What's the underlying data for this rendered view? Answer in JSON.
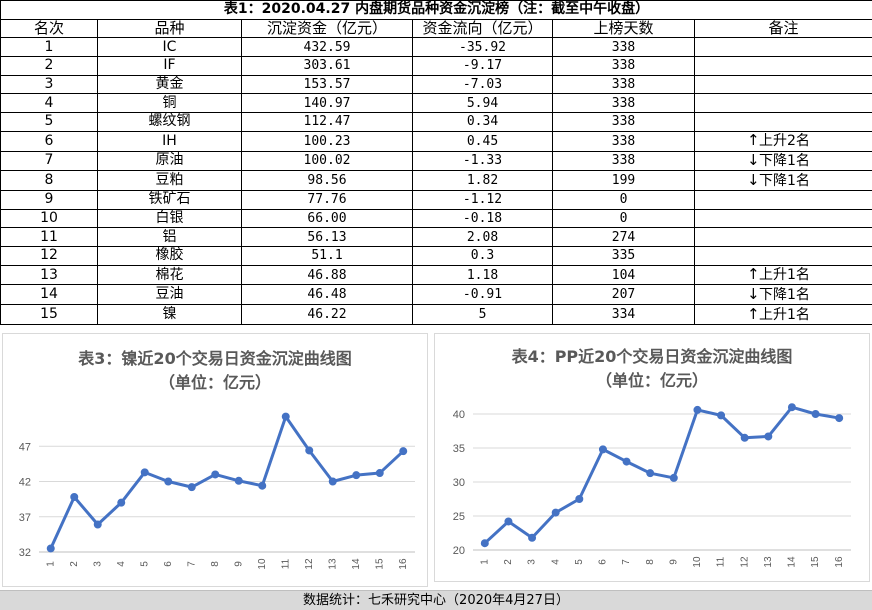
{
  "table": {
    "title": "表1：2020.04.27 内盘期货品种资金沉淀榜（注：截至中午收盘）",
    "headers": [
      "名次",
      "品种",
      "沉淀资金（亿元）",
      "资金流向（亿元）",
      "上榜天数",
      "备注"
    ],
    "rows": [
      {
        "rank": "1",
        "name": "IC",
        "amount": "432.59",
        "flow": "-35.92",
        "days": "338",
        "arrow": "",
        "note": ""
      },
      {
        "rank": "2",
        "name": "IF",
        "amount": "303.61",
        "flow": "-9.17",
        "days": "338",
        "arrow": "",
        "note": ""
      },
      {
        "rank": "3",
        "name": "黄金",
        "amount": "153.57",
        "flow": "-7.03",
        "days": "338",
        "arrow": "",
        "note": ""
      },
      {
        "rank": "4",
        "name": "铜",
        "amount": "140.97",
        "flow": "5.94",
        "days": "338",
        "arrow": "",
        "note": ""
      },
      {
        "rank": "5",
        "name": "螺纹钢",
        "amount": "112.47",
        "flow": "0.34",
        "days": "338",
        "arrow": "",
        "note": ""
      },
      {
        "rank": "6",
        "name": "IH",
        "amount": "100.23",
        "flow": "0.45",
        "days": "338",
        "arrow": "↑",
        "note": "上升2名"
      },
      {
        "rank": "7",
        "name": "原油",
        "amount": "100.02",
        "flow": "-1.33",
        "days": "338",
        "arrow": "↓",
        "note": "下降1名"
      },
      {
        "rank": "8",
        "name": "豆粕",
        "amount": "98.56",
        "flow": "1.82",
        "days": "199",
        "arrow": "↓",
        "note": "下降1名"
      },
      {
        "rank": "9",
        "name": "铁矿石",
        "amount": "77.76",
        "flow": "-1.12",
        "days": "0",
        "arrow": "",
        "note": ""
      },
      {
        "rank": "10",
        "name": "白银",
        "amount": "66.00",
        "flow": "-0.18",
        "days": "0",
        "arrow": "",
        "note": ""
      },
      {
        "rank": "11",
        "name": "铝",
        "amount": "56.13",
        "flow": "2.08",
        "days": "274",
        "arrow": "",
        "note": ""
      },
      {
        "rank": "12",
        "name": "橡胶",
        "amount": "51.1",
        "flow": "0.3",
        "days": "335",
        "arrow": "",
        "note": ""
      },
      {
        "rank": "13",
        "name": "棉花",
        "amount": "46.88",
        "flow": "1.18",
        "days": "104",
        "arrow": "↑",
        "note": "上升1名"
      },
      {
        "rank": "14",
        "name": "豆油",
        "amount": "46.48",
        "flow": "-0.91",
        "days": "207",
        "arrow": "↓",
        "note": "下降1名"
      },
      {
        "rank": "15",
        "name": "镍",
        "amount": "46.22",
        "flow": "5",
        "days": "334",
        "arrow": "↑",
        "note": "上升1名"
      }
    ]
  },
  "chart_data": [
    {
      "type": "line",
      "title": "表3：镍近20个交易日资金沉淀曲线图",
      "subtitle": "（单位：亿元）",
      "x": [
        "1",
        "2",
        "3",
        "4",
        "5",
        "6",
        "7",
        "8",
        "9",
        "10",
        "11",
        "12",
        "13",
        "14",
        "15",
        "16"
      ],
      "series": [
        {
          "values": [
            32.5,
            39.8,
            35.9,
            39.0,
            43.3,
            42.0,
            41.2,
            43.0,
            42.1,
            41.4,
            51.2,
            46.4,
            42.0,
            42.9,
            43.2,
            46.3
          ]
        }
      ],
      "yticks": [
        32,
        37,
        42,
        47
      ],
      "ylim": [
        32,
        52
      ],
      "grid": true,
      "color": "#4472c4"
    },
    {
      "type": "line",
      "title": "表4：PP近20个交易日资金沉淀曲线图",
      "subtitle": "（单位：亿元）",
      "x": [
        "1",
        "2",
        "3",
        "4",
        "5",
        "6",
        "7",
        "8",
        "9",
        "10",
        "11",
        "12",
        "13",
        "14",
        "15",
        "16"
      ],
      "series": [
        {
          "values": [
            21.0,
            24.2,
            21.8,
            25.5,
            27.5,
            34.8,
            33.0,
            31.3,
            30.6,
            40.6,
            39.8,
            36.5,
            36.7,
            41.0,
            40.0,
            39.4
          ]
        }
      ],
      "yticks": [
        20,
        25,
        30,
        35,
        40
      ],
      "ylim": [
        20,
        40
      ],
      "grid": true,
      "color": "#4472c4"
    }
  ],
  "footer": "数据统计：七禾研究中心（2020年4月27日）"
}
